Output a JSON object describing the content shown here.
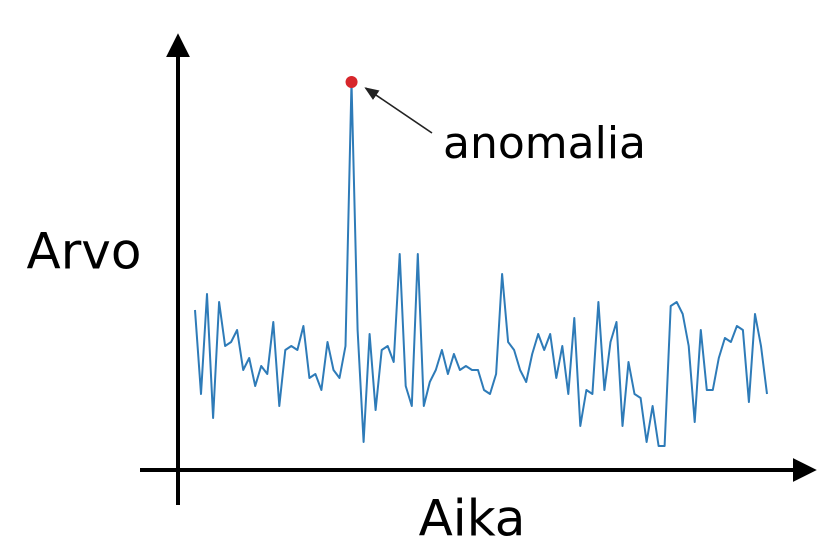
{
  "chart_data": {
    "type": "line",
    "x_label": "Aika",
    "y_label": "Arvo",
    "color": "#2e7bb8",
    "values": [
      40,
      19,
      44,
      13,
      42,
      31,
      32,
      35,
      25,
      28,
      21,
      26,
      24,
      37,
      16,
      30,
      31,
      30,
      36,
      23,
      24,
      20,
      32,
      25,
      23,
      31,
      97,
      35,
      7,
      34,
      15,
      30,
      31,
      27,
      54,
      21,
      16,
      54,
      16,
      22,
      25,
      30,
      24,
      29,
      25,
      26,
      25,
      25,
      20,
      19,
      24,
      49,
      32,
      30,
      25,
      22,
      29,
      34,
      30,
      34,
      23,
      31,
      19,
      38,
      11,
      20,
      19,
      42,
      20,
      32,
      37,
      11,
      27,
      19,
      18,
      7,
      16,
      6,
      6,
      41,
      42,
      39,
      31,
      12,
      35,
      20,
      20,
      28,
      33,
      32,
      36,
      35,
      17,
      39,
      31,
      19
    ],
    "ylim": [
      0,
      100
    ],
    "annotation": {
      "text": "anomalia",
      "index": 26,
      "color": "#d7262b"
    }
  }
}
